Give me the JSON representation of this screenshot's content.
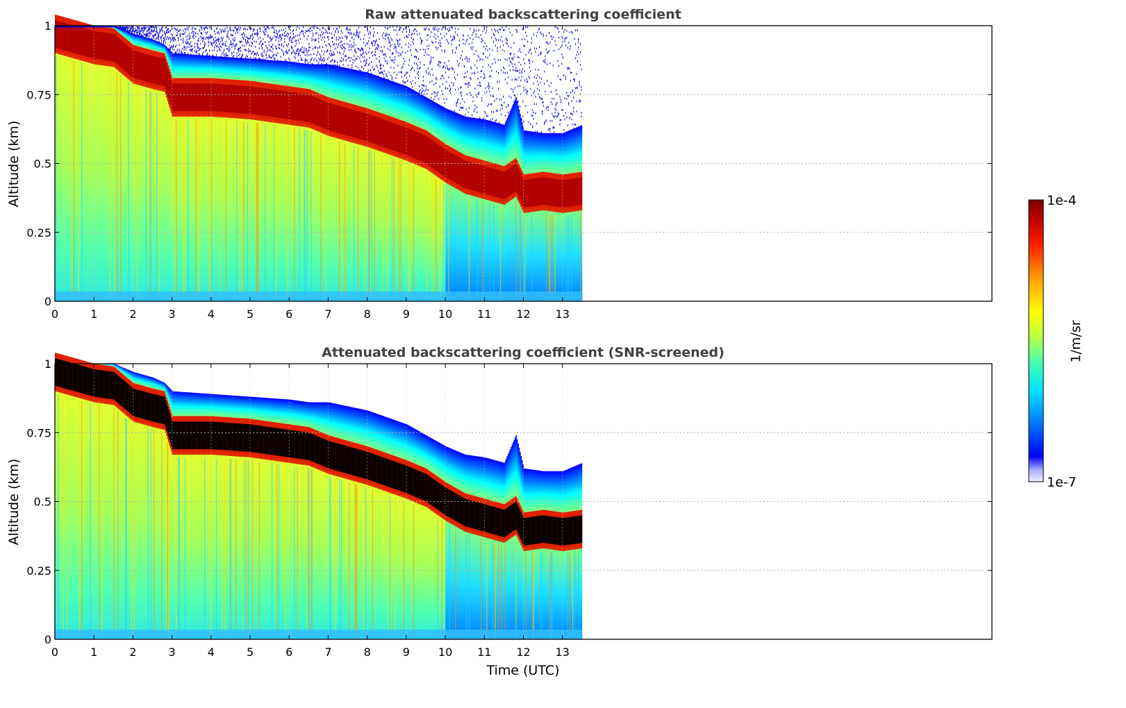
{
  "chart_data": [
    {
      "type": "heatmap",
      "title": "Raw attenuated backscattering coefficient",
      "xlabel": "",
      "ylabel": "Altitude (km)",
      "xlim": [
        0,
        24
      ],
      "ylim": [
        0,
        1
      ],
      "x_ticks": [
        "0",
        "1",
        "2",
        "3",
        "4",
        "5",
        "6",
        "7",
        "8",
        "9",
        "10",
        "11",
        "12",
        "13"
      ],
      "y_ticks": [
        "0",
        "0.25",
        "0.5",
        "0.75",
        "1"
      ],
      "data_time_range": [
        0,
        13.5
      ],
      "grid": true,
      "colorscale": "jet-log",
      "snr_screened": false,
      "layer_profile": {
        "time": [
          0,
          0.5,
          1,
          1.5,
          2,
          2.5,
          2.8,
          3,
          4,
          5,
          6,
          6.5,
          7,
          8,
          9,
          9.5,
          10,
          10.5,
          11,
          11.5,
          11.8,
          12,
          12.5,
          13,
          13.5
        ],
        "layer_top_km": [
          1.0,
          1.0,
          1.0,
          1.0,
          0.97,
          0.95,
          0.93,
          0.9,
          0.89,
          0.88,
          0.87,
          0.86,
          0.86,
          0.83,
          0.78,
          0.74,
          0.7,
          0.67,
          0.66,
          0.64,
          0.74,
          0.62,
          0.61,
          0.61,
          0.64
        ],
        "layer_center_km": [
          0.97,
          0.95,
          0.93,
          0.92,
          0.86,
          0.84,
          0.83,
          0.74,
          0.74,
          0.73,
          0.71,
          0.7,
          0.67,
          0.63,
          0.58,
          0.55,
          0.5,
          0.46,
          0.44,
          0.42,
          0.45,
          0.39,
          0.4,
          0.39,
          0.4
        ]
      }
    },
    {
      "type": "heatmap",
      "title": "Attenuated backscattering coefficient (SNR-screened)",
      "xlabel": "Time (UTC)",
      "ylabel": "Altitude (km)",
      "xlim": [
        0,
        24
      ],
      "ylim": [
        0,
        1
      ],
      "x_ticks": [
        "0",
        "1",
        "2",
        "3",
        "4",
        "5",
        "6",
        "7",
        "8",
        "9",
        "10",
        "11",
        "12",
        "13"
      ],
      "y_ticks": [
        "0",
        "0.25",
        "0.5",
        "0.75",
        "1"
      ],
      "data_time_range": [
        0,
        13.5
      ],
      "grid": true,
      "colorscale": "jet-log",
      "snr_screened": true,
      "saturated_color": "#000000"
    }
  ],
  "colorbar": {
    "label": "1/m/sr",
    "max_label": "1e-4",
    "min_label": "1e-7",
    "colors": [
      "#e8e8ff",
      "#c0c0ff",
      "#7878ff",
      "#0000ff",
      "#0060ff",
      "#00b0ff",
      "#00ffff",
      "#40ffc0",
      "#a0ff60",
      "#e0ff20",
      "#ffff00",
      "#ffc000",
      "#ff8000",
      "#ff3000",
      "#d00000",
      "#800000"
    ]
  }
}
